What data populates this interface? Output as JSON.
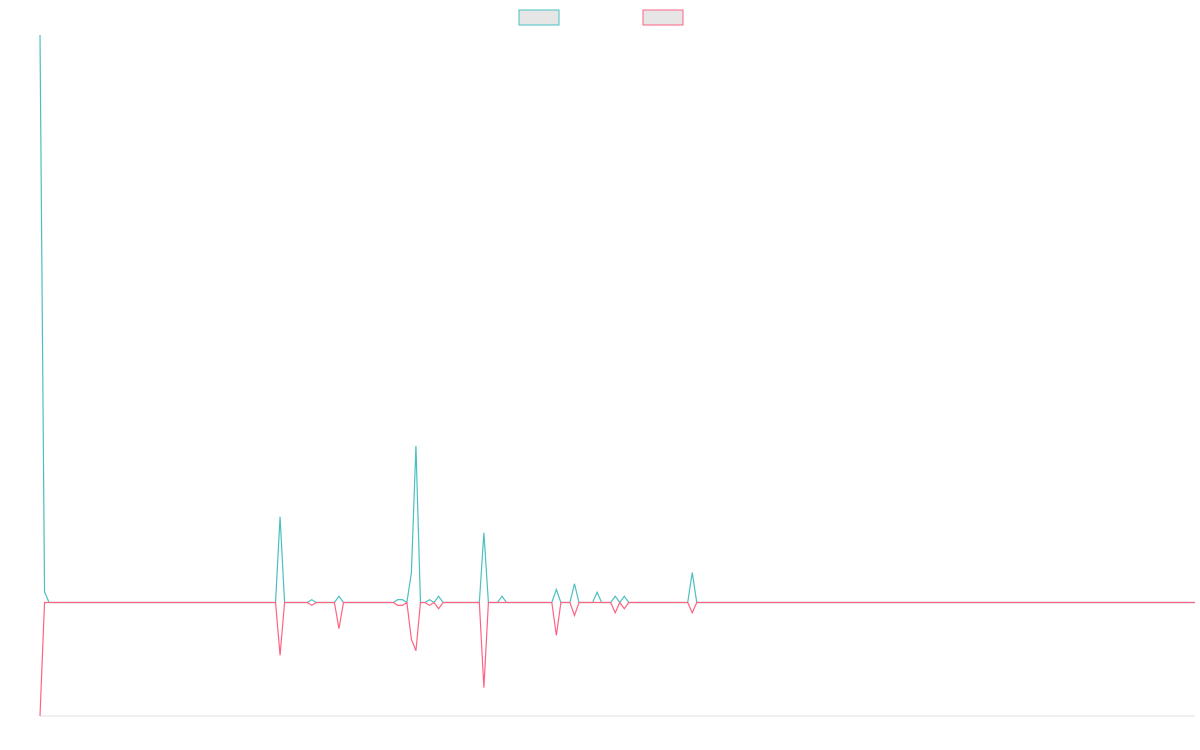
{
  "chart_data": {
    "type": "line",
    "ylim": [
      -20,
      100
    ],
    "series": [
      {
        "color": "#4bc0c0",
        "values": [
          100,
          1.9,
          0,
          0,
          0,
          0,
          0,
          0,
          0,
          0,
          0,
          0,
          0,
          0,
          0,
          0,
          0,
          0,
          0,
          0,
          0,
          0,
          0,
          0,
          0,
          0,
          0,
          0,
          0,
          0,
          0,
          0,
          0,
          0,
          0,
          0,
          0,
          0,
          0,
          0,
          0,
          0,
          0,
          0,
          0,
          0,
          0,
          0,
          0,
          0,
          0,
          0,
          0,
          15.1,
          0,
          0,
          0,
          0,
          0,
          0,
          0.5,
          0,
          0,
          0,
          0,
          0,
          1.1,
          0,
          0,
          0,
          0,
          0,
          0,
          0,
          0,
          0,
          0,
          0,
          0,
          0.5,
          0.5,
          0,
          5.3,
          27.6,
          0,
          0,
          0.5,
          0,
          1.1,
          0,
          0,
          0,
          0,
          0,
          0,
          0,
          0,
          0,
          12.3,
          0,
          0,
          0,
          1.1,
          0,
          0,
          0,
          0,
          0,
          0,
          0,
          0,
          0,
          0,
          0,
          2.3,
          0,
          0,
          0,
          3.3,
          0,
          0,
          0,
          0,
          1.8,
          0,
          0,
          0,
          1.1,
          0,
          1.1,
          0,
          0,
          0,
          0,
          0,
          0,
          0,
          0,
          0,
          0,
          0,
          0,
          0,
          0,
          5.3,
          0,
          0,
          0,
          0,
          0,
          0,
          0,
          0,
          0,
          0,
          0,
          0,
          0,
          0,
          0,
          0,
          0,
          0,
          0,
          0,
          0,
          0,
          0,
          0,
          0,
          0,
          0,
          0,
          0,
          0,
          0,
          0,
          0,
          0,
          0,
          0,
          0,
          0,
          0,
          0,
          0,
          0,
          0,
          0,
          0,
          0,
          0,
          0,
          0,
          0,
          0,
          0,
          0,
          0,
          0,
          0,
          0,
          0,
          0,
          0,
          0,
          0,
          0,
          0,
          0,
          0,
          0,
          0,
          0,
          0,
          0,
          0,
          0,
          0,
          0,
          0,
          0,
          0,
          0,
          0,
          0,
          0,
          0,
          0,
          0,
          0,
          0,
          0,
          0,
          0,
          0,
          0,
          0,
          0,
          0,
          0,
          0,
          0,
          0,
          0,
          0,
          0,
          0,
          0,
          0,
          0,
          0,
          0,
          0,
          0,
          0
        ]
      },
      {
        "color": "#ff6384",
        "values": [
          -20,
          0,
          0,
          0,
          0,
          0,
          0,
          0,
          0,
          0,
          0,
          0,
          0,
          0,
          0,
          0,
          0,
          0,
          0,
          0,
          0,
          0,
          0,
          0,
          0,
          0,
          0,
          0,
          0,
          0,
          0,
          0,
          0,
          0,
          0,
          0,
          0,
          0,
          0,
          0,
          0,
          0,
          0,
          0,
          0,
          0,
          0,
          0,
          0,
          0,
          0,
          0,
          0,
          -9.3,
          0,
          0,
          0,
          0,
          0,
          0,
          -0.5,
          0,
          0,
          0,
          0,
          0,
          -4.6,
          0,
          0,
          0,
          0,
          0,
          0,
          0,
          0,
          0,
          0,
          0,
          0,
          -0.5,
          -0.5,
          0,
          -6.5,
          -8.5,
          0,
          0,
          -0.5,
          0,
          -1.1,
          0,
          0,
          0,
          0,
          0,
          0,
          0,
          0,
          0,
          -15,
          0,
          0,
          0,
          0,
          0,
          0,
          0,
          0,
          0,
          0,
          0,
          0,
          0,
          0,
          0,
          -5.8,
          0,
          0,
          0,
          -2.3,
          0,
          0,
          0,
          0,
          0,
          0,
          0,
          0,
          -1.8,
          0,
          -1.1,
          0,
          0,
          0,
          0,
          0,
          0,
          0,
          0,
          0,
          0,
          0,
          0,
          0,
          0,
          -1.8,
          0,
          0,
          0,
          0,
          0,
          0,
          0,
          0,
          0,
          0,
          0,
          0,
          0,
          0,
          0,
          0,
          0,
          0,
          0,
          0,
          0,
          0,
          0,
          0,
          0,
          0,
          0,
          0,
          0,
          0,
          0,
          0,
          0,
          0,
          0,
          0,
          0,
          0,
          0,
          0,
          0,
          0,
          0,
          0,
          0,
          0,
          0,
          0,
          0,
          0,
          0,
          0,
          0,
          0,
          0,
          0,
          0,
          0,
          0,
          0,
          0,
          0,
          0,
          0,
          0,
          0,
          0,
          0,
          0,
          0,
          0,
          0,
          0,
          0,
          0,
          0,
          0,
          0,
          0,
          0,
          0,
          0,
          0,
          0,
          0,
          0,
          0,
          0,
          0,
          0,
          0,
          0,
          0,
          0,
          0,
          0,
          0,
          0,
          0,
          0,
          0,
          0,
          0,
          0,
          0,
          0,
          0,
          0,
          0,
          0,
          0
        ]
      }
    ]
  }
}
